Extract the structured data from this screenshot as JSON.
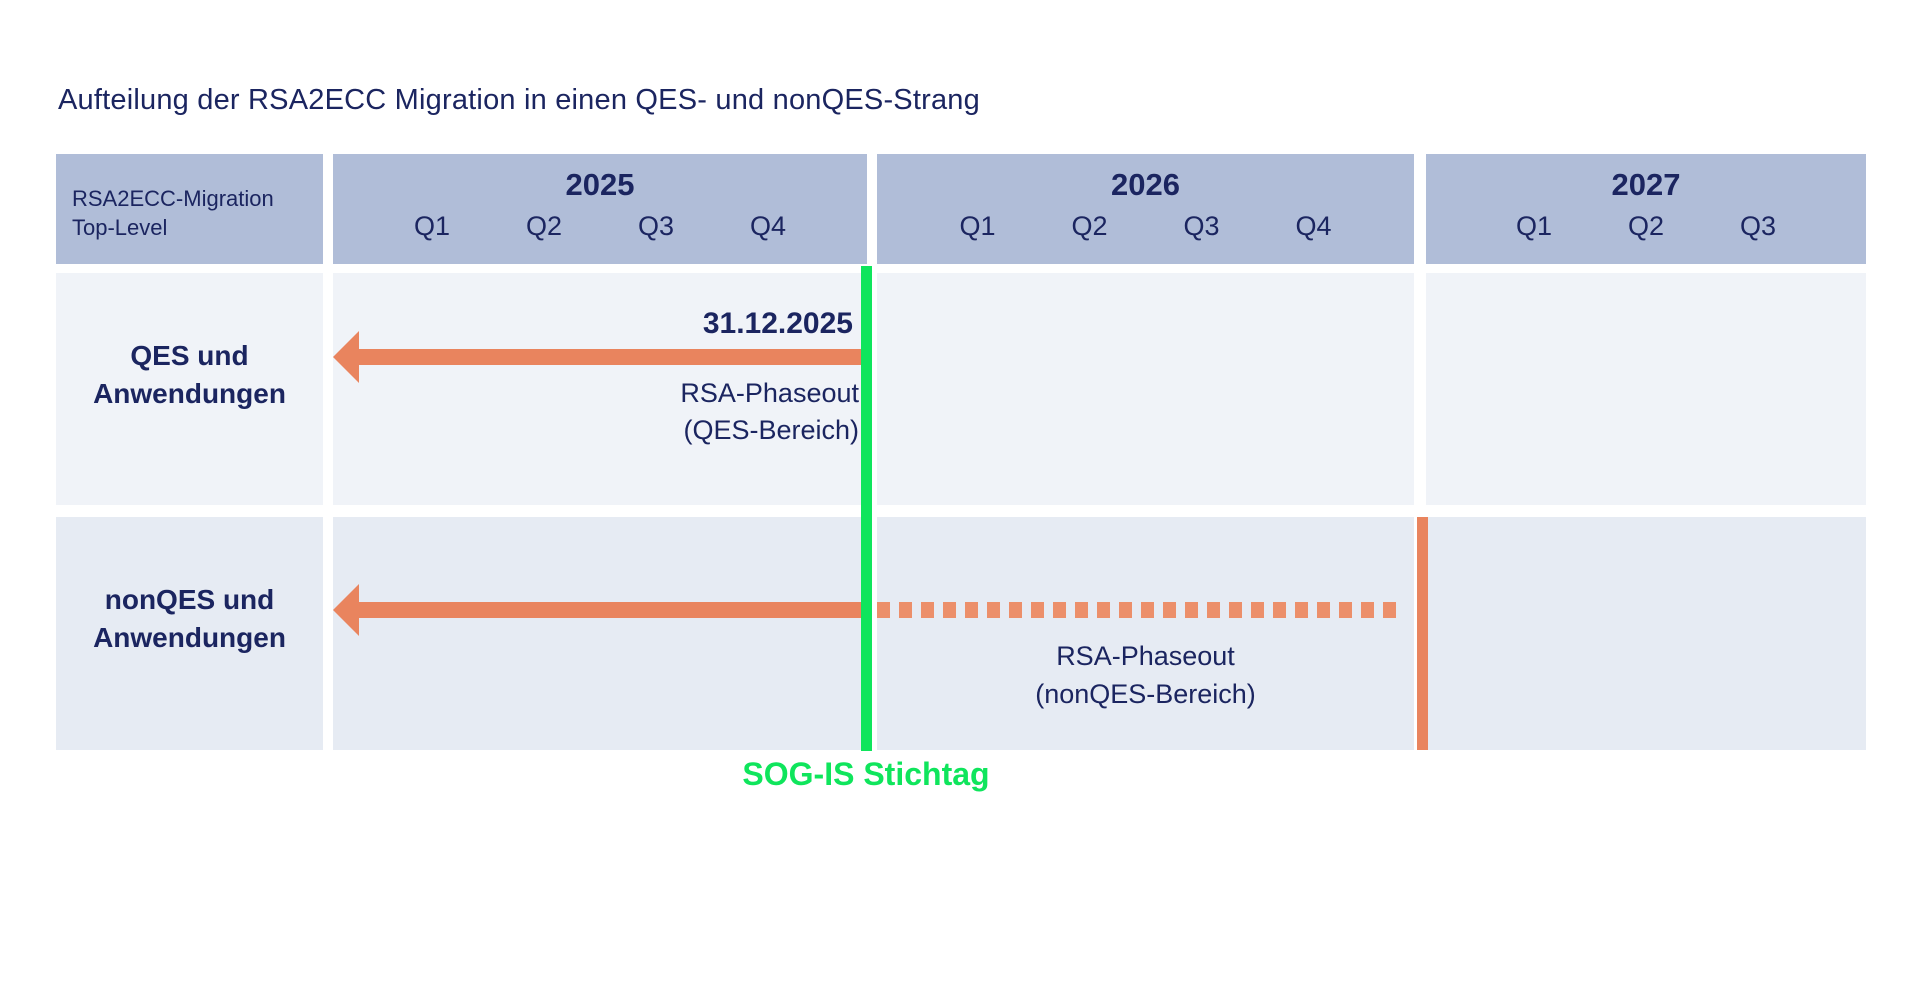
{
  "title": "Aufteilung der RSA2ECC Migration in einen QES- und nonQES-Strang",
  "colors": {
    "navy": "#1b2560",
    "header_bg": "#b0bdd8",
    "row1_bg": "#f0f3f8",
    "row2_bg": "#e6ebf3",
    "orange": "#e9845e",
    "orange_dots": "#ec8f6a",
    "green": "#0fe55c"
  },
  "table": {
    "corner": {
      "line1": "RSA2ECC-Migration",
      "line2": "Top-Level"
    },
    "years": [
      {
        "label": "2025",
        "quarters": [
          "Q1",
          "Q2",
          "Q3",
          "Q4"
        ]
      },
      {
        "label": "2026",
        "quarters": [
          "Q1",
          "Q2",
          "Q3",
          "Q4"
        ]
      },
      {
        "label": "2027",
        "quarters": [
          "Q1",
          "Q2",
          "Q3"
        ]
      }
    ]
  },
  "rows": [
    {
      "label_line1": "QES und",
      "label_line2": "Anwendungen",
      "deadline": "31.12.2025",
      "phase_line1": "RSA-Phaseout",
      "phase_line2": "(QES-Bereich)"
    },
    {
      "label_line1": "nonQES und",
      "label_line2": "Anwendungen",
      "phase_line1": "RSA-Phaseout",
      "phase_line2": "(nonQES-Bereich)"
    }
  ],
  "milestone_label": "SOG-IS Stichtag"
}
